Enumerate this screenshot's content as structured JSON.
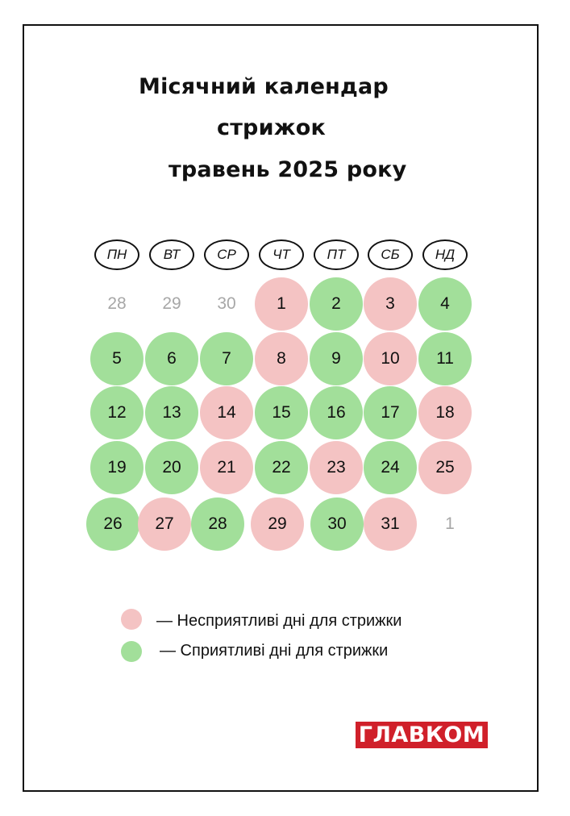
{
  "title": {
    "line1": "Місячний календар",
    "line2": "стрижок",
    "line3": "травень 2025 року"
  },
  "weekdays": [
    "ПН",
    "ВТ",
    "СР",
    "ЧТ",
    "ПТ",
    "СБ",
    "НД"
  ],
  "days": [
    {
      "label": "28",
      "status": "other-month"
    },
    {
      "label": "29",
      "status": "other-month"
    },
    {
      "label": "30",
      "status": "other-month"
    },
    {
      "label": "1",
      "status": "unfavorable"
    },
    {
      "label": "2",
      "status": "favorable"
    },
    {
      "label": "3",
      "status": "unfavorable"
    },
    {
      "label": "4",
      "status": "favorable"
    },
    {
      "label": "5",
      "status": "favorable"
    },
    {
      "label": "6",
      "status": "favorable"
    },
    {
      "label": "7",
      "status": "favorable"
    },
    {
      "label": "8",
      "status": "unfavorable"
    },
    {
      "label": "9",
      "status": "favorable"
    },
    {
      "label": "10",
      "status": "unfavorable"
    },
    {
      "label": "11",
      "status": "favorable"
    },
    {
      "label": "12",
      "status": "favorable"
    },
    {
      "label": "13",
      "status": "favorable"
    },
    {
      "label": "14",
      "status": "unfavorable"
    },
    {
      "label": "15",
      "status": "favorable"
    },
    {
      "label": "16",
      "status": "favorable"
    },
    {
      "label": "17",
      "status": "favorable"
    },
    {
      "label": "18",
      "status": "unfavorable"
    },
    {
      "label": "19",
      "status": "favorable"
    },
    {
      "label": "20",
      "status": "favorable"
    },
    {
      "label": "21",
      "status": "unfavorable"
    },
    {
      "label": "22",
      "status": "favorable"
    },
    {
      "label": "23",
      "status": "unfavorable"
    },
    {
      "label": "24",
      "status": "favorable"
    },
    {
      "label": "25",
      "status": "unfavorable"
    },
    {
      "label": "26",
      "status": "favorable"
    },
    {
      "label": "27",
      "status": "unfavorable"
    },
    {
      "label": "28",
      "status": "favorable"
    },
    {
      "label": "29",
      "status": "unfavorable"
    },
    {
      "label": "30",
      "status": "favorable"
    },
    {
      "label": "31",
      "status": "unfavorable"
    },
    {
      "label": "1",
      "status": "other-month"
    }
  ],
  "legend": {
    "unfavorable": "—  Несприятливі дні для стрижки",
    "favorable": "—  Сприятливі дні для стрижки"
  },
  "colors": {
    "favorable": "#a2df9a",
    "unfavorable": "#f4c3c3",
    "other_month_text": "#a7a7a7",
    "logo_background": "#d0202a"
  },
  "logo": {
    "text": "ГЛАВКОМ"
  }
}
